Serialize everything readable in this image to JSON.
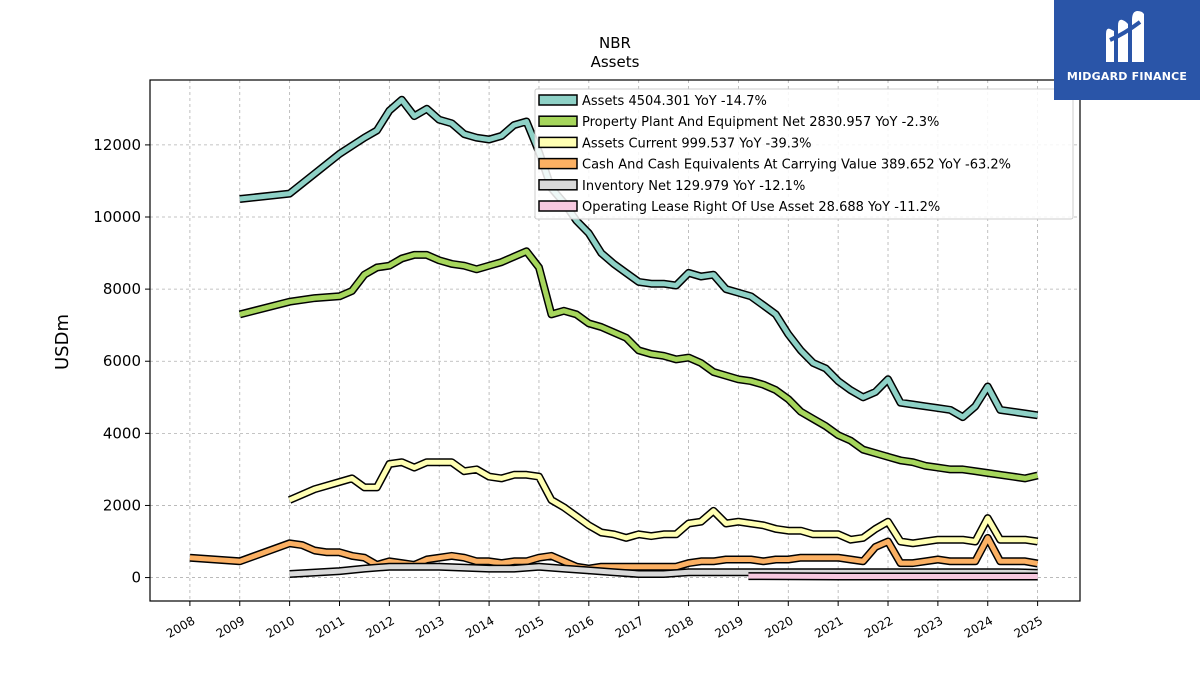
{
  "brand": {
    "name": "MIDGARD FINANCE",
    "logo_icon": "midgard-m-logo-icon",
    "bg_color": "#2a55a8"
  },
  "chart_data": {
    "type": "line",
    "title": "NBR",
    "subtitle": "Assets",
    "xlabel": "",
    "ylabel": "USDm",
    "xlim": [
      2007.2,
      2025.85
    ],
    "ylim": [
      -650,
      13800
    ],
    "yticks": [
      0,
      2000,
      4000,
      6000,
      8000,
      10000,
      12000
    ],
    "xticks": [
      2008,
      2009,
      2010,
      2011,
      2012,
      2013,
      2014,
      2015,
      2016,
      2017,
      2018,
      2019,
      2020,
      2021,
      2022,
      2023,
      2024,
      2025
    ],
    "grid": true,
    "legend_position": "top-right",
    "series": [
      {
        "name": "Assets",
        "legend_label": "Assets  4504.301 YoY -14.7%",
        "color": "#8ed1c6",
        "x": [
          2009.0,
          2010.0,
          2010.5,
          2011.0,
          2011.5,
          2011.75,
          2012.0,
          2012.25,
          2012.5,
          2012.75,
          2013.0,
          2013.25,
          2013.5,
          2013.75,
          2014.0,
          2014.25,
          2014.5,
          2014.75,
          2015.0,
          2015.25,
          2015.5,
          2015.75,
          2016.0,
          2016.25,
          2016.5,
          2016.75,
          2017.0,
          2017.25,
          2017.5,
          2017.75,
          2018.0,
          2018.25,
          2018.5,
          2018.75,
          2019.0,
          2019.25,
          2019.5,
          2019.75,
          2020.0,
          2020.25,
          2020.5,
          2020.75,
          2021.0,
          2021.25,
          2021.5,
          2021.75,
          2022.0,
          2022.25,
          2022.5,
          2022.75,
          2023.0,
          2023.25,
          2023.5,
          2023.75,
          2024.0,
          2024.25,
          2024.5,
          2024.75,
          2025.0
        ],
        "values": [
          10500,
          10650,
          11200,
          11750,
          12200,
          12400,
          12950,
          13250,
          12800,
          13000,
          12700,
          12600,
          12300,
          12200,
          12150,
          12250,
          12550,
          12650,
          11800,
          10800,
          10400,
          9900,
          9550,
          9000,
          8700,
          8450,
          8200,
          8150,
          8150,
          8100,
          8450,
          8350,
          8400,
          8000,
          7900,
          7800,
          7550,
          7300,
          6750,
          6300,
          5950,
          5800,
          5450,
          5200,
          5000,
          5150,
          5500,
          4850,
          4800,
          4750,
          4700,
          4650,
          4450,
          4750,
          5300,
          4650,
          4600,
          4550,
          4500
        ]
      },
      {
        "name": "Property Plant And Equipment Net",
        "legend_label": "Property Plant And Equipment Net  2830.957 YoY -2.3%",
        "color": "#a6d65c",
        "x": [
          2009.0,
          2010.0,
          2010.5,
          2011.0,
          2011.25,
          2011.5,
          2011.75,
          2012.0,
          2012.25,
          2012.5,
          2012.75,
          2013.0,
          2013.25,
          2013.5,
          2013.75,
          2014.0,
          2014.25,
          2014.5,
          2014.75,
          2015.0,
          2015.25,
          2015.5,
          2015.75,
          2016.0,
          2016.25,
          2016.5,
          2016.75,
          2017.0,
          2017.25,
          2017.5,
          2017.75,
          2018.0,
          2018.25,
          2018.5,
          2018.75,
          2019.0,
          2019.25,
          2019.5,
          2019.75,
          2020.0,
          2020.25,
          2020.5,
          2020.75,
          2021.0,
          2021.25,
          2021.5,
          2021.75,
          2022.0,
          2022.25,
          2022.5,
          2022.75,
          2023.0,
          2023.25,
          2023.5,
          2023.75,
          2024.0,
          2024.25,
          2024.5,
          2024.75,
          2025.0
        ],
        "values": [
          7300,
          7650,
          7750,
          7800,
          7950,
          8400,
          8600,
          8650,
          8850,
          8950,
          8950,
          8800,
          8700,
          8650,
          8550,
          8650,
          8750,
          8900,
          9050,
          8600,
          7300,
          7400,
          7300,
          7050,
          6950,
          6800,
          6650,
          6300,
          6200,
          6150,
          6050,
          6100,
          5950,
          5700,
          5600,
          5500,
          5450,
          5350,
          5200,
          4950,
          4600,
          4400,
          4200,
          3950,
          3800,
          3550,
          3450,
          3350,
          3250,
          3200,
          3100,
          3050,
          3000,
          3000,
          2950,
          2900,
          2850,
          2800,
          2750,
          2830
        ]
      },
      {
        "name": "Assets Current",
        "legend_label": "Assets Current  999.537 YoY -39.3%",
        "color": "#ffffb3",
        "x": [
          2010.0,
          2010.5,
          2011.0,
          2011.25,
          2011.5,
          2011.75,
          2012.0,
          2012.25,
          2012.5,
          2012.75,
          2013.0,
          2013.25,
          2013.5,
          2013.75,
          2014.0,
          2014.25,
          2014.5,
          2014.75,
          2015.0,
          2015.25,
          2015.5,
          2015.75,
          2016.0,
          2016.25,
          2016.5,
          2016.75,
          2017.0,
          2017.25,
          2017.5,
          2017.75,
          2018.0,
          2018.25,
          2018.5,
          2018.75,
          2019.0,
          2019.25,
          2019.5,
          2019.75,
          2020.0,
          2020.25,
          2020.5,
          2020.75,
          2021.0,
          2021.25,
          2021.5,
          2021.75,
          2022.0,
          2022.25,
          2022.5,
          2022.75,
          2023.0,
          2023.25,
          2023.5,
          2023.75,
          2024.0,
          2024.25,
          2024.5,
          2024.75,
          2025.0
        ],
        "values": [
          2150,
          2450,
          2650,
          2750,
          2500,
          2500,
          3150,
          3200,
          3050,
          3200,
          3200,
          3200,
          2950,
          3000,
          2800,
          2750,
          2850,
          2850,
          2800,
          2150,
          1950,
          1700,
          1450,
          1250,
          1200,
          1100,
          1200,
          1150,
          1200,
          1200,
          1500,
          1550,
          1850,
          1500,
          1550,
          1500,
          1450,
          1350,
          1300,
          1300,
          1200,
          1200,
          1200,
          1050,
          1100,
          1350,
          1550,
          1000,
          950,
          1000,
          1050,
          1050,
          1050,
          1000,
          1650,
          1050,
          1050,
          1050,
          1000
        ]
      },
      {
        "name": "Cash And Cash Equivalents At Carrying Value",
        "legend_label": "Cash And Cash Equivalents At Carrying Value  389.652 YoY -63.2%",
        "color": "#fbb063",
        "x": [
          2008.0,
          2009.0,
          2010.0,
          2010.25,
          2010.5,
          2010.75,
          2011.0,
          2011.25,
          2011.5,
          2011.75,
          2012.0,
          2012.25,
          2012.5,
          2012.75,
          2013.0,
          2013.25,
          2013.5,
          2013.75,
          2014.0,
          2014.25,
          2014.5,
          2014.75,
          2015.0,
          2015.25,
          2015.5,
          2015.75,
          2016.0,
          2016.25,
          2016.5,
          2016.75,
          2017.0,
          2017.25,
          2017.5,
          2017.75,
          2018.0,
          2018.25,
          2018.5,
          2018.75,
          2019.0,
          2019.25,
          2019.5,
          2019.75,
          2020.0,
          2020.25,
          2020.5,
          2020.75,
          2021.0,
          2021.25,
          2021.5,
          2021.75,
          2022.0,
          2022.25,
          2022.5,
          2022.75,
          2023.0,
          2023.25,
          2023.5,
          2023.75,
          2024.0,
          2024.25,
          2024.5,
          2024.75,
          2025.0
        ],
        "values": [
          550,
          450,
          950,
          900,
          750,
          700,
          700,
          600,
          550,
          350,
          450,
          400,
          350,
          500,
          550,
          600,
          550,
          450,
          450,
          400,
          450,
          450,
          550,
          600,
          450,
          300,
          250,
          300,
          300,
          300,
          300,
          300,
          300,
          300,
          400,
          450,
          450,
          500,
          500,
          500,
          450,
          500,
          500,
          550,
          550,
          550,
          550,
          500,
          450,
          850,
          1000,
          400,
          400,
          450,
          500,
          450,
          450,
          450,
          1100,
          450,
          450,
          450,
          390
        ]
      },
      {
        "name": "Inventory Net",
        "legend_label": "Inventory Net  129.979 YoY -12.1%",
        "color": "#d9d9d9",
        "x": [
          2010.0,
          2011.0,
          2011.5,
          2012.0,
          2013.0,
          2014.0,
          2014.5,
          2015.0,
          2015.5,
          2016.0,
          2016.5,
          2017.0,
          2017.5,
          2018.0,
          2018.5,
          2019.0,
          2019.5,
          2020.0,
          2020.5,
          2021.0,
          2021.5,
          2022.0,
          2022.5,
          2023.0,
          2023.5,
          2024.0,
          2024.5,
          2025.0
        ],
        "values": [
          100,
          180,
          250,
          300,
          300,
          250,
          250,
          300,
          250,
          200,
          150,
          100,
          100,
          150,
          150,
          150,
          150,
          150,
          150,
          150,
          150,
          150,
          150,
          150,
          150,
          150,
          150,
          130
        ]
      },
      {
        "name": "Operating Lease Right Of Use Asset",
        "legend_label": "Operating Lease Right Of Use Asset  28.688 YoY -11.2%",
        "color": "#f7c8df",
        "x": [
          2019.2,
          2020.0,
          2021.0,
          2022.0,
          2023.0,
          2024.0,
          2025.0
        ],
        "values": [
          40,
          35,
          30,
          30,
          30,
          30,
          29
        ]
      }
    ]
  }
}
